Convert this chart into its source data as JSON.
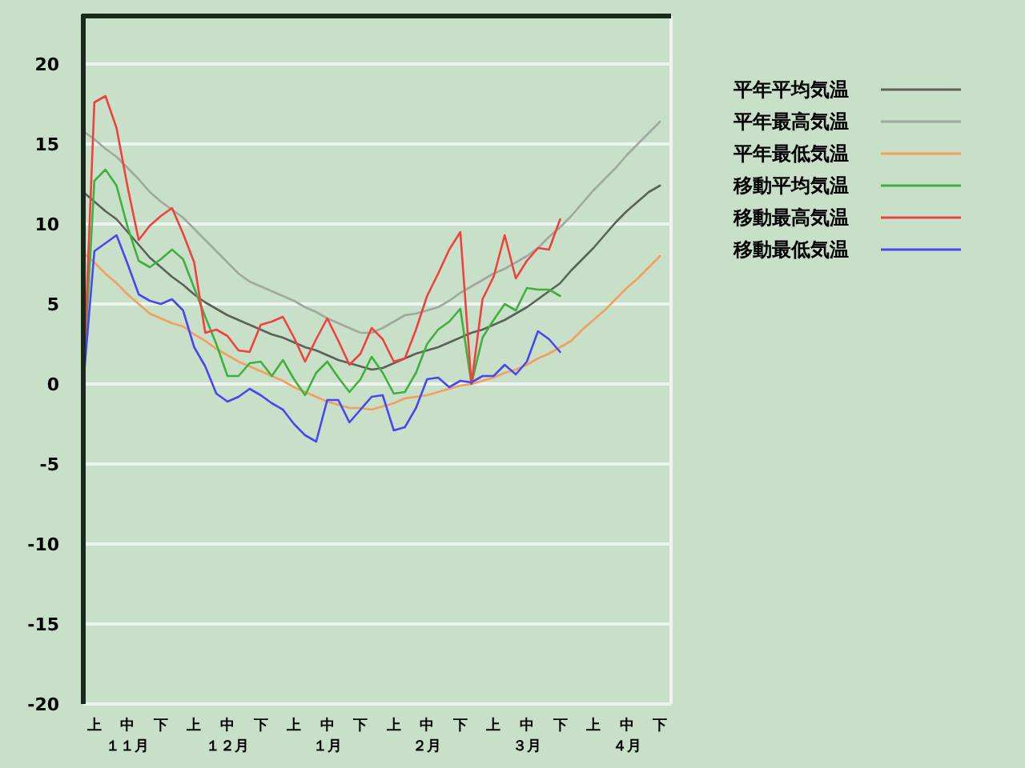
{
  "chart_data": {
    "type": "line",
    "ylim": [
      -20,
      23
    ],
    "categories": [
      null,
      "上",
      null,
      null,
      "中",
      null,
      null,
      "下",
      null,
      null,
      "上",
      null,
      null,
      "中",
      null,
      null,
      "下",
      null,
      null,
      "上",
      null,
      null,
      "中",
      null,
      null,
      "下",
      null,
      null,
      "上",
      null,
      null,
      "中",
      null,
      null,
      "下",
      null,
      null,
      "上",
      null,
      null,
      "中",
      null,
      null,
      "下",
      null,
      null,
      "上",
      null,
      null,
      "中",
      null,
      null,
      "下",
      null
    ],
    "annotations": [
      "１１月",
      "１２月",
      "１月",
      "２月",
      "３月",
      "４月"
    ],
    "yticks": [
      -20,
      -15,
      -10,
      -5,
      0,
      5,
      10,
      15,
      20
    ],
    "grid": "y",
    "legend": "right",
    "marker": "none",
    "line_style": "solid",
    "series": [
      {
        "name": "平年平均気温",
        "color": "#5a625a",
        "values": [
          12.0,
          11.4,
          10.8,
          10.3,
          9.5,
          8.7,
          7.9,
          7.3,
          6.7,
          6.2,
          5.6,
          5.1,
          4.7,
          4.3,
          4.0,
          3.7,
          3.4,
          3.1,
          2.9,
          2.6,
          2.3,
          2.1,
          1.8,
          1.5,
          1.3,
          1.1,
          0.9,
          1.0,
          1.3,
          1.6,
          1.9,
          2.1,
          2.3,
          2.6,
          2.9,
          3.2,
          3.4,
          3.7,
          4.0,
          4.4,
          4.8,
          5.3,
          5.8,
          6.3,
          7.1,
          7.8,
          8.5,
          9.3,
          10.1,
          10.8,
          11.4,
          12.0,
          12.4,
          null
        ]
      },
      {
        "name": "平年最高気温",
        "color": "#a0a8a0",
        "values": [
          15.8,
          15.3,
          14.7,
          14.2,
          13.5,
          12.8,
          12.0,
          11.4,
          10.9,
          10.4,
          9.7,
          9.0,
          8.3,
          7.6,
          6.9,
          6.4,
          6.1,
          5.8,
          5.5,
          5.2,
          4.8,
          4.5,
          4.1,
          3.8,
          3.5,
          3.2,
          3.2,
          3.5,
          3.9,
          4.3,
          4.4,
          4.6,
          4.8,
          5.2,
          5.7,
          6.1,
          6.5,
          6.9,
          7.2,
          7.6,
          8.0,
          8.5,
          9.2,
          9.8,
          10.5,
          11.3,
          12.1,
          12.8,
          13.5,
          14.3,
          15.0,
          15.7,
          16.4,
          null
        ]
      },
      {
        "name": "平年最低気温",
        "color": "#f0a060",
        "values": [
          8.2,
          7.6,
          6.9,
          6.3,
          5.6,
          5.0,
          4.4,
          4.1,
          3.8,
          3.6,
          3.1,
          2.7,
          2.2,
          1.8,
          1.4,
          1.1,
          0.8,
          0.5,
          0.2,
          -0.2,
          -0.5,
          -0.8,
          -1.1,
          -1.3,
          -1.5,
          -1.5,
          -1.6,
          -1.4,
          -1.2,
          -0.9,
          -0.8,
          -0.7,
          -0.5,
          -0.3,
          -0.1,
          0.0,
          0.2,
          0.4,
          0.7,
          0.9,
          1.2,
          1.6,
          1.9,
          2.3,
          2.7,
          3.4,
          4.0,
          4.6,
          5.3,
          6.0,
          6.6,
          7.3,
          8.0,
          null
        ]
      },
      {
        "name": "移動平均気温",
        "color": "#40b040",
        "values": [
          0,
          12.7,
          13.4,
          12.4,
          9.8,
          7.7,
          7.3,
          7.8,
          8.4,
          7.8,
          6.0,
          4.2,
          2.5,
          0.5,
          0.5,
          1.3,
          1.4,
          0.5,
          1.5,
          0.3,
          -0.7,
          0.7,
          1.4,
          0.4,
          -0.5,
          0.3,
          1.7,
          0.7,
          -0.6,
          -0.5,
          0.7,
          2.5,
          3.4,
          3.9,
          4.7,
          0,
          2.9,
          4.0,
          5.0,
          4.6,
          6.0,
          5.9,
          5.9,
          5.5,
          null,
          null,
          null,
          null,
          null,
          null,
          null,
          null,
          null,
          null
        ]
      },
      {
        "name": "移動最高気温",
        "color": "#f04040",
        "values": [
          0,
          17.6,
          18.0,
          16.0,
          12.3,
          9.0,
          9.9,
          10.5,
          11.0,
          9.4,
          7.6,
          3.2,
          3.4,
          3.0,
          2.1,
          2.0,
          3.7,
          3.9,
          4.2,
          2.9,
          1.4,
          2.8,
          4.1,
          2.7,
          1.2,
          1.9,
          3.5,
          2.8,
          1.4,
          1.6,
          3.4,
          5.5,
          6.9,
          8.4,
          9.5,
          0,
          5.3,
          6.7,
          9.3,
          6.6,
          7.7,
          8.5,
          8.4,
          10.3,
          null,
          null,
          null,
          null,
          null,
          null,
          null,
          null,
          null,
          null
        ]
      },
      {
        "name": "移動最低気温",
        "color": "#4848f0",
        "values": [
          0,
          8.3,
          8.8,
          9.3,
          7.5,
          5.6,
          5.2,
          5.0,
          5.3,
          4.6,
          2.3,
          1.1,
          -0.6,
          -1.1,
          -0.8,
          -0.3,
          -0.7,
          -1.2,
          -1.6,
          -2.5,
          -3.2,
          -3.6,
          -1.0,
          -1.0,
          -2.4,
          -1.6,
          -0.8,
          -0.7,
          -2.9,
          -2.7,
          -1.5,
          0.3,
          0.4,
          -0.2,
          0.2,
          0.1,
          0.5,
          0.5,
          1.2,
          0.6,
          1.4,
          3.3,
          2.8,
          2.0,
          null,
          null,
          null,
          null,
          null,
          null,
          null,
          null,
          null,
          null
        ]
      }
    ]
  }
}
